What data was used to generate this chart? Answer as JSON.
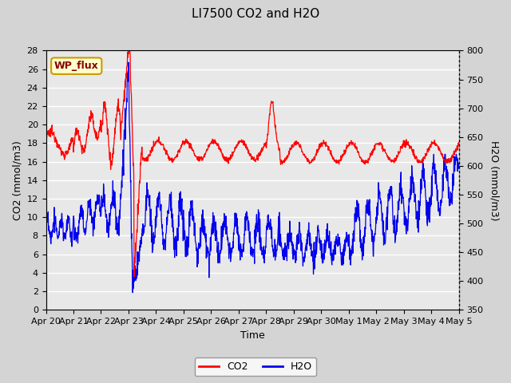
{
  "title": "LI7500 CO2 and H2O",
  "xlabel": "Time",
  "ylabel_left": "CO2 (mmol/m3)",
  "ylabel_right": "H2O (mmol/m3)",
  "ylim_left": [
    0,
    28
  ],
  "ylim_right": [
    350,
    800
  ],
  "yticks_left": [
    0,
    2,
    4,
    6,
    8,
    10,
    12,
    14,
    16,
    18,
    20,
    22,
    24,
    26,
    28
  ],
  "yticks_right": [
    350,
    400,
    450,
    500,
    550,
    600,
    650,
    700,
    750,
    800
  ],
  "xtick_labels": [
    "Apr 20",
    "Apr 21",
    "Apr 22",
    "Apr 23",
    "Apr 24",
    "Apr 25",
    "Apr 26",
    "Apr 27",
    "Apr 28",
    "Apr 29",
    "Apr 30",
    "May 1",
    "May 2",
    "May 3",
    "May 4",
    "May 5"
  ],
  "co2_color": "#FF0000",
  "h2o_color": "#0000EE",
  "plot_bg_color": "#E8E8E8",
  "fig_bg_color": "#D4D4D4",
  "annotation_text": "WP_flux",
  "annotation_bg": "#FFFFCC",
  "annotation_border": "#CC9900",
  "title_fontsize": 11,
  "axis_fontsize": 9,
  "tick_fontsize": 8
}
